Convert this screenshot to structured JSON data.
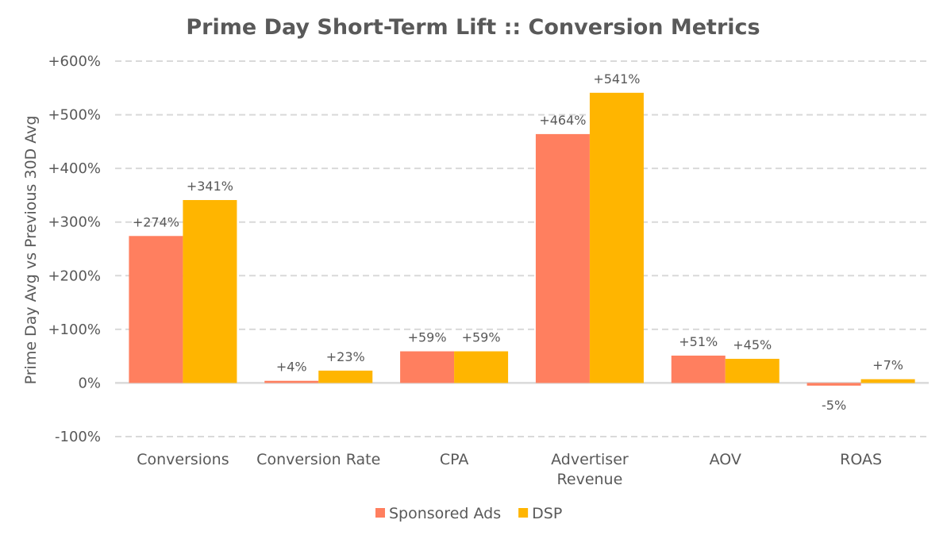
{
  "chart_data": {
    "type": "bar",
    "title": "Prime Day Short-Term Lift :: Conversion Metrics",
    "ylabel": "Prime Day Avg vs Previous 30D Avg",
    "xlabel": "",
    "ylim": [
      -100,
      600
    ],
    "yticks": [
      -100,
      0,
      100,
      200,
      300,
      400,
      500,
      600
    ],
    "ytick_labels": [
      "-100%",
      "0%",
      "+100%",
      "+200%",
      "+300%",
      "+400%",
      "+500%",
      "+600%"
    ],
    "categories": [
      [
        "Conversions"
      ],
      [
        "Conversion Rate"
      ],
      [
        "CPA"
      ],
      [
        "Advertiser",
        "Revenue"
      ],
      [
        "AOV"
      ],
      [
        "ROAS"
      ]
    ],
    "series": [
      {
        "name": "Sponsored Ads",
        "color": "#ff7f5f",
        "values": [
          274,
          4,
          59,
          464,
          51,
          -5
        ],
        "labels": [
          "+274%",
          "+4%",
          "+59%",
          "+464%",
          "+51%",
          "-5%"
        ]
      },
      {
        "name": "DSP",
        "color": "#ffb500",
        "values": [
          341,
          23,
          59,
          541,
          45,
          7
        ],
        "labels": [
          "+341%",
          "+23%",
          "+59%",
          "+541%",
          "+45%",
          "+7%"
        ]
      }
    ],
    "grid": true,
    "legend_position": "bottom"
  }
}
